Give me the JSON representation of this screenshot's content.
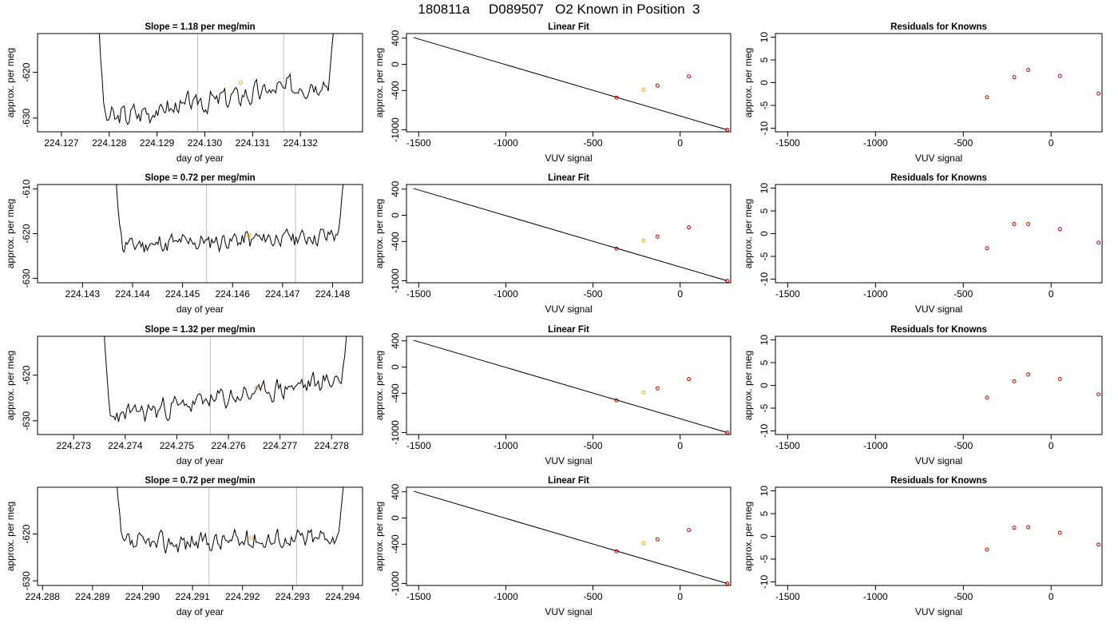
{
  "figure": {
    "title": "180811a     D089507   O2 Known in Position  3"
  },
  "colors": {
    "trace": "#000000",
    "marker_orange": "#ffa500",
    "marker_red": "#cc0000",
    "vline": "#bebebe"
  },
  "chart_data": [
    {
      "type": "line",
      "title": "Slope =  1.18  per meg/min",
      "xlabel": "day of year",
      "ylabel": "approx. per meg",
      "xlim": [
        224.1265,
        224.1333
      ],
      "ylim": [
        -633,
        -611.5
      ],
      "xticks": [
        "224.127",
        "224.128",
        "224.129",
        "224.130",
        "224.131",
        "224.132"
      ],
      "yticks": [
        "-620",
        "-630"
      ],
      "x_range": [
        224.12775,
        224.13275
      ],
      "ends": [
        -595,
        -600
      ],
      "trend": [
        -630.5,
        -621.5
      ],
      "noise": 1.8,
      "seed": 3,
      "vlines": [
        224.12985,
        224.13165
      ],
      "highlight": [
        224.13075,
        -622.2
      ]
    },
    {
      "type": "scatter",
      "title": "Linear Fit",
      "xlabel": "VUV signal",
      "ylabel": "approx. per meg",
      "xlim": [
        -1570,
        290
      ],
      "ylim": [
        -1030,
        470
      ],
      "xticks": [
        "-1500",
        "-1000",
        "-500",
        "0"
      ],
      "yticks": [
        "400",
        "0",
        "-400",
        "-1000"
      ],
      "line": [
        [
          -1530,
          410
        ],
        [
          270,
          -1000
        ]
      ],
      "points": [
        [
          -365,
          -508
        ],
        [
          -210,
          -387
        ],
        [
          -130,
          -325
        ],
        [
          50,
          -184
        ],
        [
          270,
          -1000
        ]
      ],
      "highlight_index": 1
    },
    {
      "type": "scatter",
      "title": "Residuals for Knowns",
      "xlabel": "VUV signal",
      "ylabel": "approx. per meg",
      "xlim": [
        -1570,
        290
      ],
      "ylim": [
        -10.8,
        10.8
      ],
      "xticks": [
        "-1500",
        "-1000",
        "-500",
        "0"
      ],
      "yticks": [
        "10",
        "5",
        "0",
        "-5",
        "-10"
      ],
      "points": [
        [
          -365,
          -3.2
        ],
        [
          -210,
          1.2
        ],
        [
          -130,
          2.8
        ],
        [
          50,
          1.5
        ],
        [
          270,
          -2.4
        ]
      ]
    },
    {
      "type": "line",
      "title": "Slope =  0.72  per meg/min",
      "xlabel": "day of year",
      "ylabel": "approx. per meg",
      "xlim": [
        224.1421,
        224.1486
      ],
      "ylim": [
        -631,
        -609
      ],
      "xticks": [
        "224.143",
        "224.144",
        "224.145",
        "224.146",
        "224.147",
        "224.148"
      ],
      "yticks": [
        "-610",
        "-620",
        "-630"
      ],
      "x_range": [
        224.14365,
        224.14825
      ],
      "ends": [
        -600,
        -600
      ],
      "trend": [
        -622.8,
        -620.3
      ],
      "noise": 1.6,
      "seed": 11,
      "vlines": [
        224.14548,
        224.14726
      ],
      "highlight": [
        224.14633,
        -620.4
      ]
    },
    {
      "type": "scatter",
      "title": "Linear Fit",
      "xlabel": "VUV signal",
      "ylabel": "approx. per meg",
      "xlim": [
        -1570,
        290
      ],
      "ylim": [
        -1030,
        470
      ],
      "xticks": [
        "-1500",
        "-1000",
        "-500",
        "0"
      ],
      "yticks": [
        "400",
        "0",
        "-400",
        "-1000"
      ],
      "line": [
        [
          -1530,
          410
        ],
        [
          270,
          -1000
        ]
      ],
      "points": [
        [
          -365,
          -508
        ],
        [
          -210,
          -387
        ],
        [
          -130,
          -325
        ],
        [
          50,
          -184
        ],
        [
          270,
          -1000
        ]
      ],
      "highlight_index": 1
    },
    {
      "type": "scatter",
      "title": "Residuals for Knowns",
      "xlabel": "VUV signal",
      "ylabel": "approx. per meg",
      "xlim": [
        -1570,
        290
      ],
      "ylim": [
        -10.8,
        10.8
      ],
      "xticks": [
        "-1500",
        "-1000",
        "-500",
        "0"
      ],
      "yticks": [
        "10",
        "5",
        "0",
        "-5",
        "-10"
      ],
      "points": [
        [
          -365,
          -3.2
        ],
        [
          -210,
          2.1
        ],
        [
          -130,
          2.1
        ],
        [
          50,
          1.0
        ],
        [
          270,
          -2.0
        ]
      ]
    },
    {
      "type": "line",
      "title": "Slope =  1.32  per meg/min",
      "xlabel": "day of year",
      "ylabel": "approx. per meg",
      "xlim": [
        224.2723,
        224.2786
      ],
      "ylim": [
        -633,
        -611.5
      ],
      "xticks": [
        "224.273",
        "224.274",
        "224.275",
        "224.276",
        "224.277",
        "224.278"
      ],
      "yticks": [
        "-620",
        "-630"
      ],
      "x_range": [
        224.27355,
        224.27835
      ],
      "ends": [
        -595,
        -600
      ],
      "trend": [
        -629.5,
        -620.5
      ],
      "noise": 1.7,
      "seed": 23,
      "vlines": [
        224.27565,
        224.27745
      ],
      "highlight": [
        224.27655,
        -622.8
      ]
    },
    {
      "type": "scatter",
      "title": "Linear Fit",
      "xlabel": "VUV signal",
      "ylabel": "approx. per meg",
      "xlim": [
        -1570,
        290
      ],
      "ylim": [
        -1030,
        470
      ],
      "xticks": [
        "-1500",
        "-1000",
        "-500",
        "0"
      ],
      "yticks": [
        "400",
        "0",
        "-400",
        "-1000"
      ],
      "line": [
        [
          -1530,
          410
        ],
        [
          270,
          -1000
        ]
      ],
      "points": [
        [
          -365,
          -508
        ],
        [
          -210,
          -387
        ],
        [
          -130,
          -325
        ],
        [
          50,
          -184
        ],
        [
          270,
          -1000
        ]
      ],
      "highlight_index": 1
    },
    {
      "type": "scatter",
      "title": "Residuals for Knowns",
      "xlabel": "VUV signal",
      "ylabel": "approx. per meg",
      "xlim": [
        -1570,
        290
      ],
      "ylim": [
        -10.8,
        10.8
      ],
      "xticks": [
        "-1500",
        "-1000",
        "-500",
        "0"
      ],
      "yticks": [
        "10",
        "5",
        "0",
        "-5",
        "-10"
      ],
      "points": [
        [
          -365,
          -2.7
        ],
        [
          -210,
          0.9
        ],
        [
          -130,
          2.4
        ],
        [
          50,
          1.4
        ],
        [
          270,
          -2.0
        ]
      ]
    },
    {
      "type": "line",
      "title": "Slope =  0.72  per meg/min",
      "xlabel": "day of year",
      "ylabel": "approx. per meg",
      "xlim": [
        224.2879,
        224.2944
      ],
      "ylim": [
        -631,
        -610
      ],
      "xticks": [
        "224.288",
        "224.289",
        "224.290",
        "224.291",
        "224.292",
        "224.293",
        "224.294"
      ],
      "yticks": [
        "-620",
        "-630"
      ],
      "x_range": [
        224.28945,
        224.29405
      ],
      "ends": [
        -600,
        -600
      ],
      "trend": [
        -622.3,
        -620.6
      ],
      "noise": 1.6,
      "seed": 37,
      "vlines": [
        224.29133,
        224.29308
      ],
      "highlight": [
        224.29218,
        -620.8
      ]
    },
    {
      "type": "scatter",
      "title": "Linear Fit",
      "xlabel": "VUV signal",
      "ylabel": "approx. per meg",
      "xlim": [
        -1570,
        290
      ],
      "ylim": [
        -1030,
        470
      ],
      "xticks": [
        "-1500",
        "-1000",
        "-500",
        "0"
      ],
      "yticks": [
        "400",
        "0",
        "-400",
        "-1000"
      ],
      "line": [
        [
          -1530,
          410
        ],
        [
          270,
          -1000
        ]
      ],
      "points": [
        [
          -365,
          -508
        ],
        [
          -210,
          -387
        ],
        [
          -130,
          -325
        ],
        [
          50,
          -184
        ],
        [
          270,
          -1000
        ]
      ],
      "highlight_index": 1
    },
    {
      "type": "scatter",
      "title": "Residuals for Knowns",
      "xlabel": "VUV signal",
      "ylabel": "approx. per meg",
      "xlim": [
        -1570,
        290
      ],
      "ylim": [
        -10.8,
        10.8
      ],
      "xticks": [
        "-1500",
        "-1000",
        "-500",
        "0"
      ],
      "yticks": [
        "10",
        "5",
        "0",
        "-5",
        "-10"
      ],
      "points": [
        [
          -365,
          -2.9
        ],
        [
          -210,
          1.9
        ],
        [
          -130,
          2.0
        ],
        [
          50,
          0.8
        ],
        [
          270,
          -1.8
        ]
      ]
    }
  ]
}
